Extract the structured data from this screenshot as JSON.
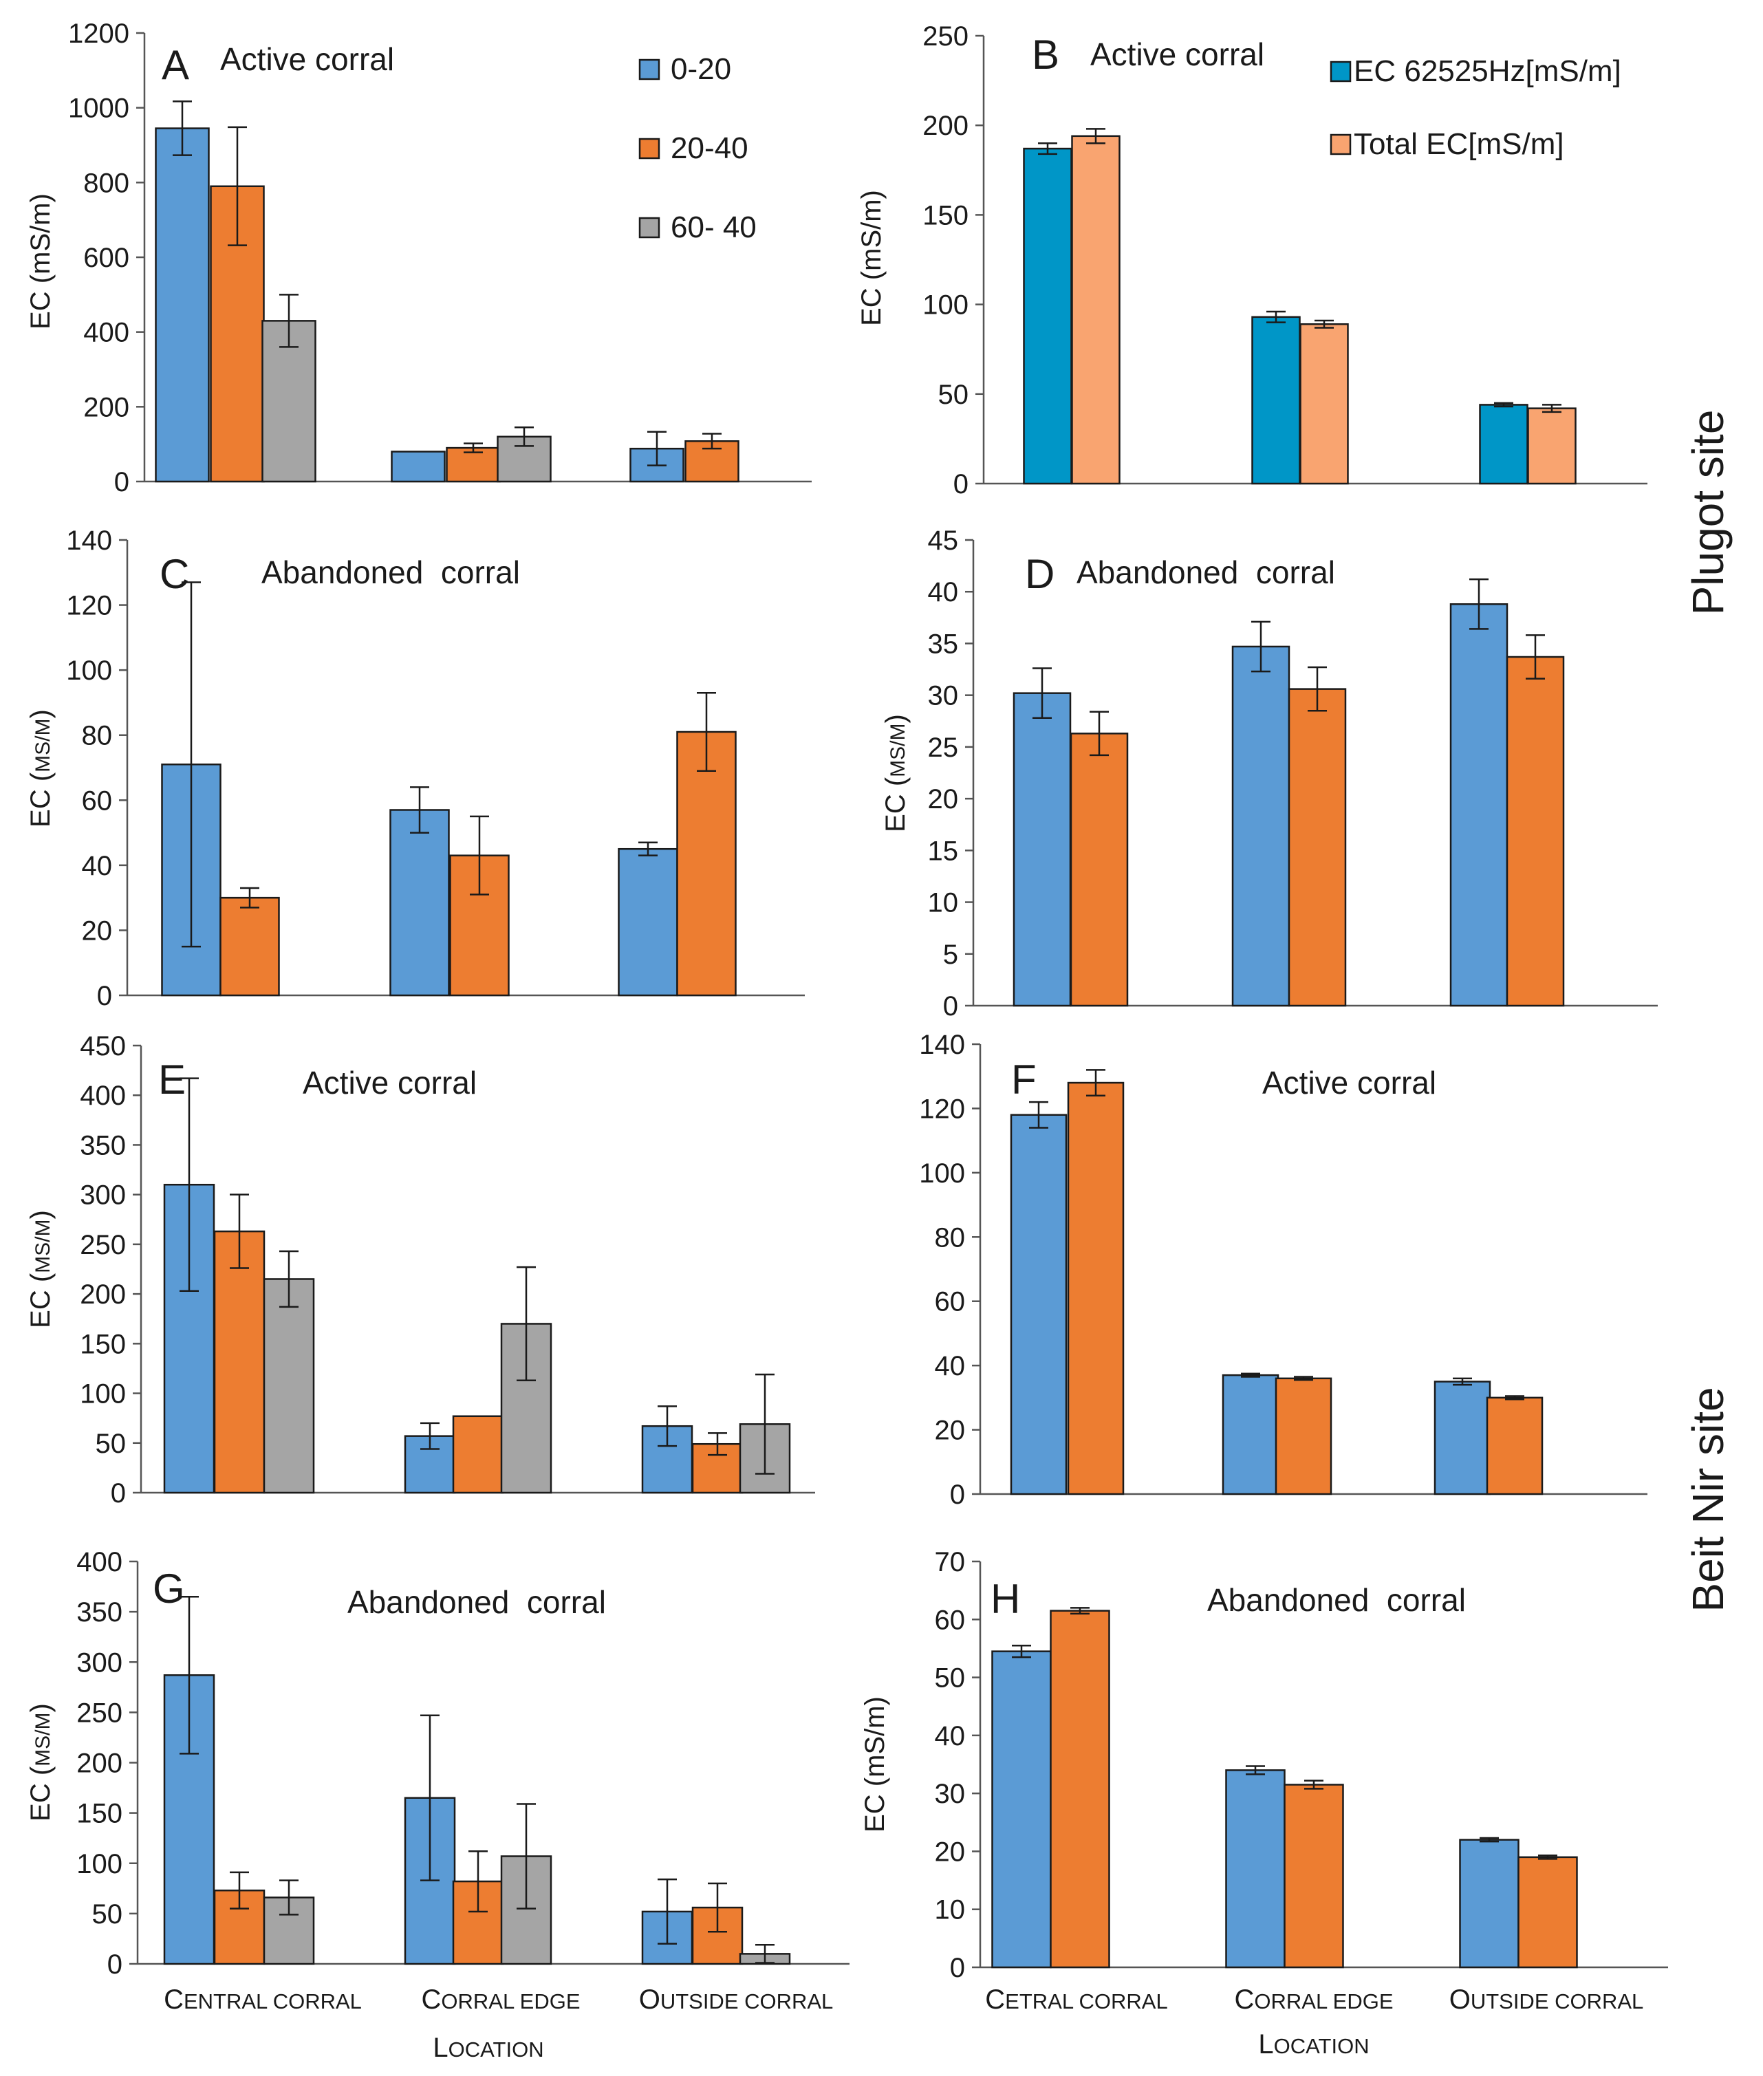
{
  "sites": {
    "top": "Plugot site",
    "bottom": "Beit Nir site"
  },
  "x_axis": {
    "left": {
      "categories": [
        {
          "first": "C",
          "rest": "entral corral",
          "display": "Central corral"
        },
        {
          "first": "C",
          "rest": "orral edge",
          "display": "Corral edge"
        },
        {
          "first": "O",
          "rest": "utside corral",
          "display": "Outside corral"
        }
      ],
      "title": {
        "first": "L",
        "rest": "ocation",
        "display": "Location"
      }
    },
    "right": {
      "categories": [
        {
          "first": "C",
          "rest": "etral corral",
          "display": "Cetral corral"
        },
        {
          "first": "C",
          "rest": "orral edge",
          "display": "Corral edge"
        },
        {
          "first": "O",
          "rest": "utside corral",
          "display": "Outside corral"
        }
      ],
      "title": {
        "first": "L",
        "rest": "ocation",
        "display": "Location"
      }
    }
  },
  "colors": {
    "blue": "#5b9bd5",
    "orange": "#ed7d31",
    "gray": "#a5a5a5",
    "teal": "#0096c7",
    "salmon": "#f9a470"
  },
  "chart_data": [
    {
      "panel": "A",
      "title": "Active corral",
      "type": "bar",
      "ylabel": {
        "text": "EC (mS/m",
        "small": "",
        "close": ")"
      },
      "ylim": [
        0,
        1200
      ],
      "yticks": [
        0,
        200,
        400,
        600,
        800,
        1000,
        1200
      ],
      "categories": [
        "Central corral",
        "Corral edge",
        "Outside corral"
      ],
      "legend": {
        "position": "top-right",
        "style": "vertical"
      },
      "series": [
        {
          "name": "0-20",
          "color": "#5b9bd5",
          "values": [
            945,
            80,
            88
          ],
          "errors": [
            72,
            0,
            45
          ]
        },
        {
          "name": "20-40",
          "color": "#ed7d31",
          "values": [
            790,
            90,
            108
          ],
          "errors": [
            158,
            12,
            20
          ]
        },
        {
          "name": "60- 40",
          "color": "#a5a5a5",
          "values": [
            430,
            120,
            null
          ],
          "errors": [
            70,
            25,
            0
          ]
        }
      ]
    },
    {
      "panel": "B",
      "title": "Active corral",
      "type": "bar",
      "ylabel": {
        "text": "EC (mS/m",
        "small": "",
        "close": ")"
      },
      "ylim": [
        0,
        250
      ],
      "yticks": [
        0,
        50,
        100,
        150,
        200,
        250
      ],
      "categories": [
        "Central corral",
        "Corral edge",
        "Outside corral"
      ],
      "legend": {
        "position": "top-right",
        "style": "vertical"
      },
      "series": [
        {
          "name": "EC 62525Hz[mS/m]",
          "color": "#0096c7",
          "values": [
            187,
            93,
            44
          ],
          "errors": [
            3,
            3,
            1
          ]
        },
        {
          "name": "Total EC[mS/m]",
          "color": "#f9a470",
          "values": [
            194,
            89,
            42
          ],
          "errors": [
            4,
            2,
            2
          ]
        }
      ]
    },
    {
      "panel": "C",
      "title": "Abandoned  corral",
      "type": "bar",
      "ylabel": {
        "text": "EC (",
        "small": "mS/m",
        "close": ")"
      },
      "ylim": [
        0,
        140
      ],
      "yticks": [
        0,
        20,
        40,
        60,
        80,
        100,
        120,
        140
      ],
      "categories": [
        "Central corral",
        "Corral edge",
        "Outside corral"
      ],
      "series": [
        {
          "name": "0-20",
          "color": "#5b9bd5",
          "values": [
            71,
            57,
            45
          ],
          "errors": [
            56,
            7,
            2
          ]
        },
        {
          "name": "20-40",
          "color": "#ed7d31",
          "values": [
            30,
            43,
            81
          ],
          "errors": [
            3,
            12,
            12
          ]
        }
      ]
    },
    {
      "panel": "D",
      "title": "Abandoned  corral",
      "type": "bar",
      "ylabel": {
        "text": "EC (",
        "small": "mS/m",
        "close": ")"
      },
      "ylim": [
        0,
        45
      ],
      "yticks": [
        0,
        5,
        10,
        15,
        20,
        25,
        30,
        35,
        40,
        45
      ],
      "categories": [
        "Central corral",
        "Corral edge",
        "Outside corral"
      ],
      "series": [
        {
          "name": "0-20",
          "color": "#5b9bd5",
          "values": [
            30.2,
            34.7,
            38.8
          ],
          "errors": [
            2.4,
            2.4,
            2.4
          ]
        },
        {
          "name": "20-40",
          "color": "#ed7d31",
          "values": [
            26.3,
            30.6,
            33.7
          ],
          "errors": [
            2.1,
            2.1,
            2.1
          ]
        }
      ]
    },
    {
      "panel": "E",
      "title": "Active corral",
      "type": "bar",
      "ylabel": {
        "text": "EC (",
        "small": "mS/m",
        "close": ")"
      },
      "ylim": [
        0,
        450
      ],
      "yticks": [
        0,
        50,
        100,
        150,
        200,
        250,
        300,
        350,
        400,
        450
      ],
      "categories": [
        "Central corral",
        "Corral edge",
        "Outside corral"
      ],
      "series": [
        {
          "name": "0-20",
          "color": "#5b9bd5",
          "values": [
            310,
            57,
            67
          ],
          "errors": [
            107,
            13,
            20
          ]
        },
        {
          "name": "20-40",
          "color": "#ed7d31",
          "values": [
            263,
            77,
            49
          ],
          "errors": [
            37,
            0,
            11
          ]
        },
        {
          "name": "60- 40",
          "color": "#a5a5a5",
          "values": [
            215,
            170,
            69
          ],
          "errors": [
            28,
            57,
            50
          ]
        }
      ]
    },
    {
      "panel": "F",
      "title": "Active corral",
      "type": "bar",
      "ylabel": {
        "text": "",
        "small": "",
        "close": ""
      },
      "ylim": [
        0,
        140
      ],
      "yticks": [
        0,
        20,
        40,
        60,
        80,
        100,
        120,
        140
      ],
      "categories": [
        "Central corral",
        "Corral edge",
        "Outside corral"
      ],
      "series": [
        {
          "name": "0-20",
          "color": "#5b9bd5",
          "values": [
            118,
            37,
            35
          ],
          "errors": [
            4,
            0.5,
            1
          ]
        },
        {
          "name": "20-40",
          "color": "#ed7d31",
          "values": [
            128,
            36,
            30
          ],
          "errors": [
            4,
            0.5,
            0.5
          ]
        }
      ]
    },
    {
      "panel": "G",
      "title": "Abandoned  corral",
      "type": "bar",
      "ylabel": {
        "text": "EC (",
        "small": "mS/m",
        "close": ")"
      },
      "ylim": [
        0,
        400
      ],
      "yticks": [
        0,
        50,
        100,
        150,
        200,
        250,
        300,
        350,
        400
      ],
      "categories": [
        "Central corral",
        "Corral edge",
        "Outside corral"
      ],
      "series": [
        {
          "name": "0-20",
          "color": "#5b9bd5",
          "values": [
            287,
            165,
            52
          ],
          "errors": [
            78,
            82,
            32
          ]
        },
        {
          "name": "20-40",
          "color": "#ed7d31",
          "values": [
            73,
            82,
            56
          ],
          "errors": [
            18,
            30,
            24
          ]
        },
        {
          "name": "60- 40",
          "color": "#a5a5a5",
          "values": [
            66,
            107,
            10
          ],
          "errors": [
            17,
            52,
            9
          ]
        }
      ]
    },
    {
      "panel": "H",
      "title": "Abandoned  corral",
      "type": "bar",
      "ylabel": {
        "text": "EC (mS/m",
        "small": "",
        "close": ")"
      },
      "ylim": [
        0,
        70
      ],
      "yticks": [
        0,
        10,
        20,
        30,
        40,
        50,
        60,
        70
      ],
      "categories": [
        "Cetral corral",
        "Corral edge",
        "Outside corral"
      ],
      "series": [
        {
          "name": "0-20",
          "color": "#5b9bd5",
          "values": [
            54.5,
            34,
            22
          ],
          "errors": [
            1,
            0.7,
            0.3
          ]
        },
        {
          "name": "20-40",
          "color": "#ed7d31",
          "values": [
            61.5,
            31.5,
            19
          ],
          "errors": [
            0.5,
            0.7,
            0.3
          ]
        }
      ]
    }
  ]
}
